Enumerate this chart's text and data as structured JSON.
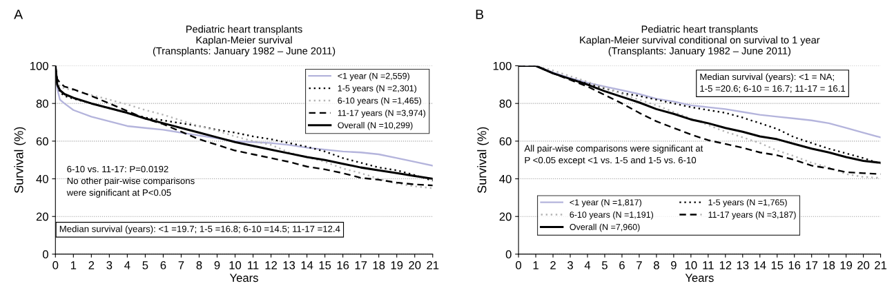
{
  "chart_data": [
    {
      "type": "line",
      "title": "Pediatric heart transplants\nKaplan-Meier survival\n(Transplants: January 1982 – June 2011)",
      "xlabel": "Years",
      "ylabel": "Survival (%)",
      "xlim": [
        0,
        21
      ],
      "ylim": [
        0,
        100
      ],
      "xticks": [
        0,
        1,
        2,
        3,
        4,
        5,
        6,
        7,
        8,
        9,
        10,
        11,
        12,
        13,
        14,
        15,
        16,
        17,
        18,
        19,
        20,
        21
      ],
      "yticks": [
        0,
        20,
        40,
        60,
        80,
        100
      ],
      "grid": "y",
      "legend": "top right",
      "marker": "none",
      "x": [
        0,
        0.1,
        0.25,
        0.5,
        1,
        2,
        3,
        4,
        5,
        6,
        7,
        8,
        9,
        10,
        11,
        12,
        13,
        14,
        15,
        16,
        17,
        18,
        19,
        20,
        21
      ],
      "annotations": [
        "A",
        "6-10 vs. 11-17: P=0.0192\nNo other pair-wise comparisons\nwere significant at P<0.05",
        "Median survival (years): <1 =19.7; 1-5 =16.8; 6-10 =14.5; 11-17 =12.4"
      ],
      "series": [
        {
          "name": "<1 year (N =2,559)",
          "color": "#b4b4dc",
          "line_style": "solid",
          "values": [
            100,
            88,
            82,
            80,
            76.5,
            73,
            70.5,
            68,
            67,
            66,
            64.5,
            63,
            61.5,
            60,
            59.5,
            59,
            58,
            56.5,
            55.5,
            54.5,
            54,
            53,
            51,
            49,
            47
          ]
        },
        {
          "name": "1-5 years (N =2,301)",
          "color": "#000000",
          "line_style": "dotted",
          "values": [
            100,
            90,
            86,
            84,
            82.5,
            80,
            77.5,
            75,
            72.5,
            71,
            69.5,
            68,
            66,
            64.5,
            62.5,
            61,
            59,
            57,
            54.5,
            51,
            48.5,
            46,
            44.5,
            42,
            39
          ]
        },
        {
          "name": "6-10 years (N =1,465)",
          "color": "#b4b4b4",
          "line_style": "dotted",
          "values": [
            100,
            92,
            89,
            88,
            87,
            84.5,
            82,
            79.5,
            76.5,
            74,
            71,
            68,
            65.5,
            62.5,
            60,
            58,
            54,
            51.5,
            49,
            45.5,
            43,
            40,
            37.5,
            36,
            35
          ]
        },
        {
          "name": "11-17 years (N =3,974)",
          "color": "#000000",
          "line_style": "dashed",
          "values": [
            100,
            93,
            91,
            89,
            87.5,
            84,
            80,
            76,
            72,
            69,
            65,
            61,
            58,
            55,
            53,
            51,
            49,
            46.5,
            45,
            43,
            40.5,
            39.5,
            38,
            37,
            36.5
          ]
        },
        {
          "name": "Overall (N =10,299)",
          "color": "#000000",
          "line_style": "solid",
          "values": [
            100,
            90,
            87,
            85,
            83,
            80,
            77.5,
            75,
            72,
            69.5,
            67,
            64.5,
            62,
            59.5,
            57.5,
            55.5,
            53.5,
            51.5,
            50,
            48,
            46,
            44.5,
            43,
            41.5,
            40
          ]
        }
      ]
    },
    {
      "type": "line",
      "title": "Pediatric heart transplants\nKaplan-Meier survival conditional on survival to 1 year\n(Transplants: January 1982 – June 2011)",
      "xlabel": "Years",
      "ylabel": "Survival (%)",
      "xlim": [
        0,
        21
      ],
      "ylim": [
        0,
        100
      ],
      "xticks": [
        0,
        1,
        2,
        3,
        4,
        5,
        6,
        7,
        8,
        9,
        10,
        11,
        12,
        13,
        14,
        15,
        16,
        17,
        18,
        19,
        20,
        21
      ],
      "yticks": [
        0,
        20,
        40,
        60,
        80,
        100
      ],
      "grid": "y",
      "legend": "bottom left",
      "marker": "none",
      "x": [
        0,
        1,
        2,
        3,
        4,
        5,
        6,
        7,
        8,
        9,
        10,
        11,
        12,
        13,
        14,
        15,
        16,
        17,
        18,
        19,
        20,
        21
      ],
      "annotations": [
        "B",
        "Median survival (years): <1 = NA;\n1-5 =20.6; 6-10 = 16.7; 11-17 = 16.1",
        "All pair-wise comparisons were significant at\nP <0.05 except <1 vs. 1-5 and 1-5 vs. 6-10"
      ],
      "series": [
        {
          "name": "<1 year (N =1,817)",
          "color": "#b4b4dc",
          "line_style": "solid",
          "values": [
            100,
            100,
            96.5,
            93.5,
            91,
            89,
            87,
            85,
            82.5,
            81,
            79,
            78,
            77,
            75.5,
            74,
            73,
            72,
            71,
            69.5,
            67,
            64.5,
            62
          ]
        },
        {
          "name": "1-5 years (N =1,765)",
          "color": "#000000",
          "line_style": "dotted",
          "values": [
            100,
            100,
            96,
            93,
            90.5,
            88,
            85.5,
            84,
            82,
            80,
            78,
            76.5,
            75,
            72.5,
            69.5,
            66.5,
            62,
            59,
            56,
            53.5,
            51,
            48
          ]
        },
        {
          "name": "6-10 years (N =1,191)",
          "color": "#b4b4b4",
          "line_style": "dotted",
          "values": [
            100,
            100,
            97.5,
            94.5,
            91.5,
            88.5,
            85,
            82,
            79,
            75.5,
            72,
            68.5,
            65,
            62,
            59,
            55,
            52,
            48.5,
            46,
            42.5,
            41,
            40.5
          ]
        },
        {
          "name": "11-17 years (N =3,187)",
          "color": "#000000",
          "line_style": "dashed",
          "values": [
            100,
            100,
            96,
            92.5,
            89,
            84.5,
            80,
            75,
            70.5,
            67,
            63.5,
            60.5,
            58.5,
            56.5,
            54,
            52.5,
            50,
            47,
            45.5,
            43.5,
            43,
            42.5
          ]
        },
        {
          "name": "Overall (N =7,960)",
          "color": "#000000",
          "line_style": "solid",
          "values": [
            100,
            100,
            96,
            93,
            90,
            86.5,
            83.5,
            80.5,
            77,
            74.5,
            71.5,
            69.5,
            67,
            65,
            62.5,
            61,
            58.5,
            56,
            54,
            51.5,
            49.5,
            48.5
          ]
        }
      ]
    }
  ]
}
